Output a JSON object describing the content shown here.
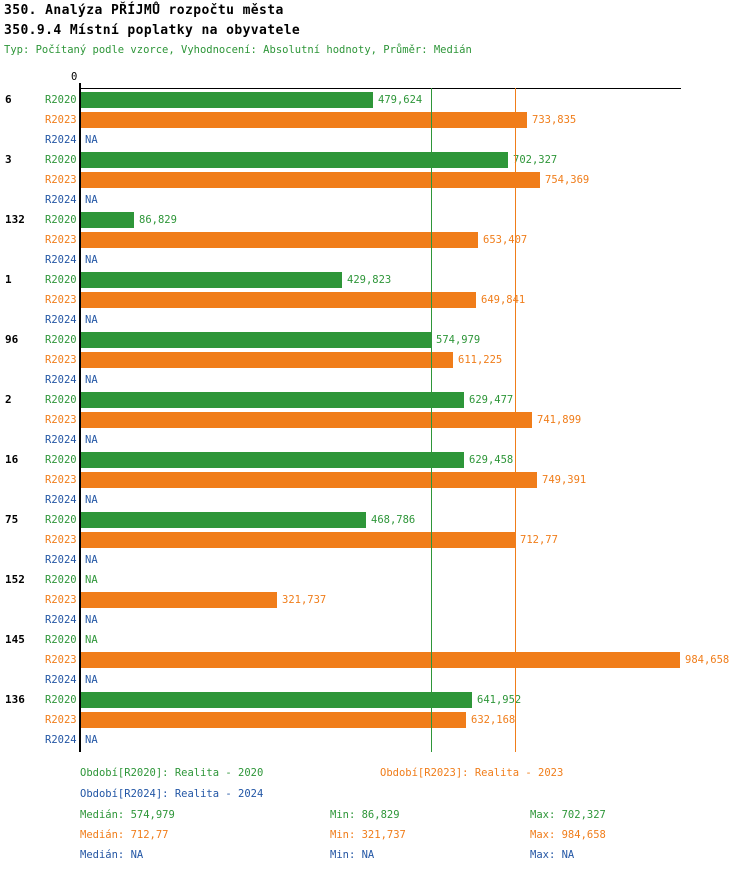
{
  "header": {
    "title_line1": "350. Analýza PŘÍJMŮ rozpočtu města",
    "title_line2": "350.9.4 Místní poplatky na obyvatele",
    "subtitle": "Typ: Počítaný podle vzorce, Vyhodnocení: Absolutní hodnoty, Průměr: Medián"
  },
  "colors": {
    "green": "#2e9639",
    "orange": "#f07d1a",
    "blue": "#2256a5",
    "axis": "#000000"
  },
  "chart_data": {
    "type": "bar",
    "orientation": "horizontal",
    "title": "350.9.4 Místní poplatky na obyvatele",
    "x_axis": {
      "origin_label": "0",
      "range": [
        0,
        984.658
      ]
    },
    "grid": false,
    "legend_position": "bottom",
    "series": [
      {
        "name": "R2020",
        "color": "green"
      },
      {
        "name": "R2023",
        "color": "orange"
      },
      {
        "name": "R2024",
        "color": "blue"
      }
    ],
    "groups": [
      {
        "id": "6",
        "rows": [
          {
            "series": "R2020",
            "value": 479.624,
            "label": "479,624"
          },
          {
            "series": "R2023",
            "value": 733.835,
            "label": "733,835"
          },
          {
            "series": "R2024",
            "value": null,
            "label": "NA"
          }
        ]
      },
      {
        "id": "3",
        "rows": [
          {
            "series": "R2020",
            "value": 702.327,
            "label": "702,327"
          },
          {
            "series": "R2023",
            "value": 754.369,
            "label": "754,369"
          },
          {
            "series": "R2024",
            "value": null,
            "label": "NA"
          }
        ]
      },
      {
        "id": "132",
        "rows": [
          {
            "series": "R2020",
            "value": 86.829,
            "label": "86,829"
          },
          {
            "series": "R2023",
            "value": 653.407,
            "label": "653,407"
          },
          {
            "series": "R2024",
            "value": null,
            "label": "NA"
          }
        ]
      },
      {
        "id": "1",
        "rows": [
          {
            "series": "R2020",
            "value": 429.823,
            "label": "429,823"
          },
          {
            "series": "R2023",
            "value": 649.841,
            "label": "649,841"
          },
          {
            "series": "R2024",
            "value": null,
            "label": "NA"
          }
        ]
      },
      {
        "id": "96",
        "rows": [
          {
            "series": "R2020",
            "value": 574.979,
            "label": "574,979"
          },
          {
            "series": "R2023",
            "value": 611.225,
            "label": "611,225"
          },
          {
            "series": "R2024",
            "value": null,
            "label": "NA"
          }
        ]
      },
      {
        "id": "2",
        "rows": [
          {
            "series": "R2020",
            "value": 629.477,
            "label": "629,477"
          },
          {
            "series": "R2023",
            "value": 741.899,
            "label": "741,899"
          },
          {
            "series": "R2024",
            "value": null,
            "label": "NA"
          }
        ]
      },
      {
        "id": "16",
        "rows": [
          {
            "series": "R2020",
            "value": 629.458,
            "label": "629,458"
          },
          {
            "series": "R2023",
            "value": 749.391,
            "label": "749,391"
          },
          {
            "series": "R2024",
            "value": null,
            "label": "NA"
          }
        ]
      },
      {
        "id": "75",
        "rows": [
          {
            "series": "R2020",
            "value": 468.786,
            "label": "468,786"
          },
          {
            "series": "R2023",
            "value": 712.77,
            "label": "712,77"
          },
          {
            "series": "R2024",
            "value": null,
            "label": "NA"
          }
        ]
      },
      {
        "id": "152",
        "rows": [
          {
            "series": "R2020",
            "value": null,
            "label": "NA"
          },
          {
            "series": "R2023",
            "value": 321.737,
            "label": "321,737"
          },
          {
            "series": "R2024",
            "value": null,
            "label": "NA"
          }
        ]
      },
      {
        "id": "145",
        "rows": [
          {
            "series": "R2020",
            "value": null,
            "label": "NA"
          },
          {
            "series": "R2023",
            "value": 984.658,
            "label": "984,658"
          },
          {
            "series": "R2024",
            "value": null,
            "label": "NA"
          }
        ]
      },
      {
        "id": "136",
        "rows": [
          {
            "series": "R2020",
            "value": 641.952,
            "label": "641,952"
          },
          {
            "series": "R2023",
            "value": 632.168,
            "label": "632,168"
          },
          {
            "series": "R2024",
            "value": null,
            "label": "NA"
          }
        ]
      }
    ],
    "reference_lines": [
      {
        "name": "median-2020-line",
        "value": 574.979,
        "color": "green"
      },
      {
        "name": "median-2023-line",
        "value": 712.77,
        "color": "orange"
      }
    ]
  },
  "legend": {
    "r2020": "Období[R2020]: Realita - 2020",
    "r2023": "Období[R2023]: Realita - 2023",
    "r2024": "Období[R2024]: Realita - 2024"
  },
  "stats": {
    "r2020": {
      "median": "Medián: 574,979",
      "min": "Min: 86,829",
      "max": "Max: 702,327"
    },
    "r2023": {
      "median": "Medián: 712,77",
      "min": "Min: 321,737",
      "max": "Max: 984,658"
    },
    "r2024": {
      "median": "Medián: NA",
      "min": "Min: NA",
      "max": "Max: NA"
    }
  }
}
